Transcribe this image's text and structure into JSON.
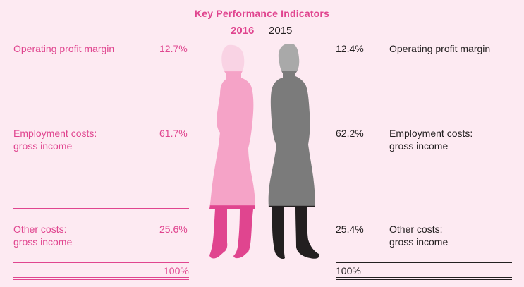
{
  "title": "Key Performance Indicators",
  "years": {
    "current": "2016",
    "previous": "2015"
  },
  "colors": {
    "current": "#e0458f",
    "current_light": "#f5a3c7",
    "current_faded": "#f9d3e4",
    "previous": "#231f20",
    "previous_mid": "#7b7b7b",
    "previous_light": "#a9a9a9",
    "background": "#fdeaf2"
  },
  "chart_data": {
    "type": "table",
    "title": "Key Performance Indicators",
    "series": [
      {
        "name": "2016",
        "values": [
          12.7,
          61.7,
          25.6
        ],
        "total": 100
      },
      {
        "name": "2015",
        "values": [
          12.4,
          62.2,
          25.4
        ],
        "total": 100
      }
    ],
    "categories": [
      "Operating profit margin",
      "Employment costs: gross income",
      "Other costs: gross income"
    ]
  },
  "left": {
    "rows": [
      {
        "label1": "Operating profit margin",
        "label2": "",
        "value": "12.7%"
      },
      {
        "label1": "Employment costs:",
        "label2": "gross income",
        "value": "61.7%"
      },
      {
        "label1": "Other costs:",
        "label2": "gross income",
        "value": "25.6%"
      }
    ],
    "total": "100%"
  },
  "right": {
    "rows": [
      {
        "label1": "Operating profit margin",
        "label2": "",
        "value": "12.4%"
      },
      {
        "label1": "Employment costs:",
        "label2": "gross income",
        "value": "62.2%"
      },
      {
        "label1": "Other costs:",
        "label2": "gross income",
        "value": "25.4%"
      }
    ],
    "total": "100%"
  }
}
